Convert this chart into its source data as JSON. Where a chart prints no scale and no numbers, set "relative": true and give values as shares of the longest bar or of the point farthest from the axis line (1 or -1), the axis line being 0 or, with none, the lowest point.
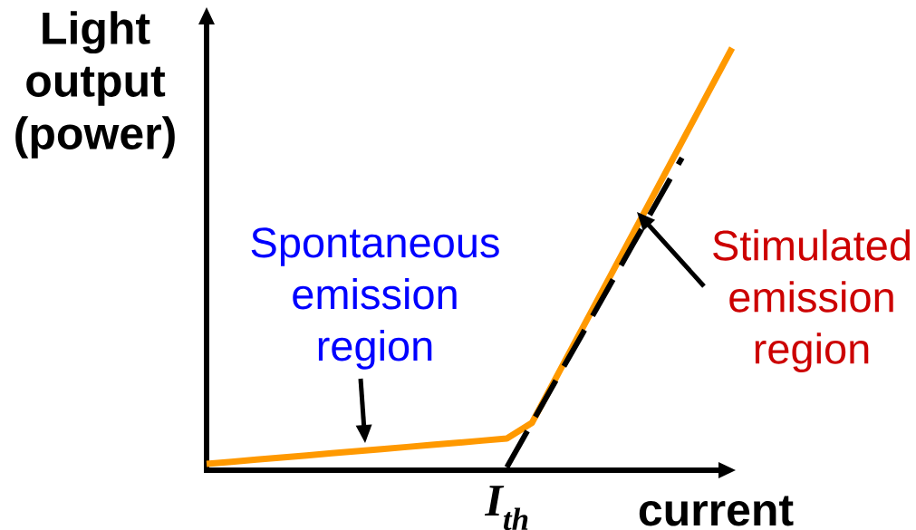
{
  "chart_data": {
    "type": "line",
    "relative": true,
    "ylabel": "Light output (power)",
    "xlabel": "current",
    "categories": [
      null,
      null,
      null,
      null,
      null,
      null,
      null,
      null,
      null,
      null,
      null,
      null,
      null,
      null,
      null,
      null,
      null,
      null,
      null,
      null,
      null,
      null
    ],
    "series": [
      {
        "color": "#ff9900",
        "line_style": "solid",
        "values": [
          0.015,
          0.02,
          0.025,
          0.03,
          0.035,
          0.04,
          0.045,
          0.05,
          0.055,
          0.06,
          0.065,
          0.07,
          0.075,
          0.112,
          0.223,
          0.334,
          0.445,
          0.556,
          0.667,
          0.778,
          0.889,
          1
        ]
      },
      {
        "type": "line",
        "color": "#000000",
        "line_style": "dashed",
        "values": [
          null,
          null,
          null,
          null,
          null,
          null,
          null,
          null,
          null,
          null,
          null,
          null,
          0.007,
          0.112,
          0.217,
          0.321,
          0.426,
          0.531,
          0.635,
          0.74,
          null,
          null
        ]
      }
    ],
    "annotations": [
      "Spontaneous emission region",
      "Stimulated emission region",
      "I$_{th}$"
    ]
  }
}
